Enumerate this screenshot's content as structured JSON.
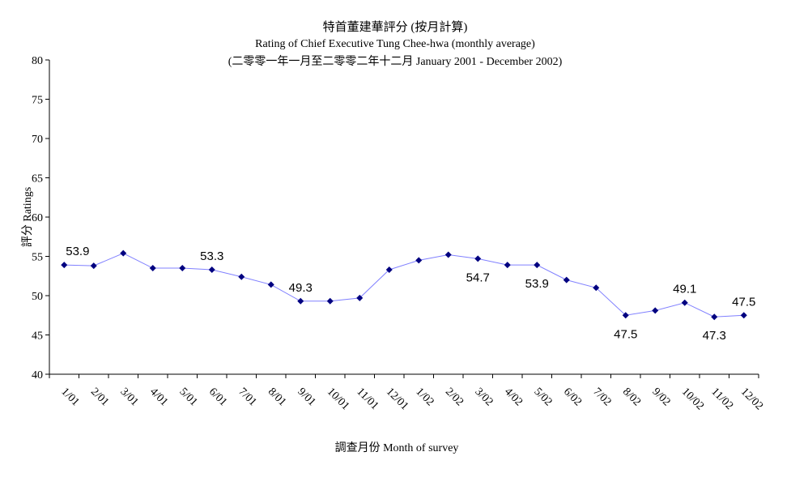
{
  "chart_data": {
    "type": "line",
    "title": "特首董建華評分 (按月計算)",
    "subtitle": "Rating of Chief Executive Tung Chee-hwa (monthly average)",
    "subtitle2": "(二零零一年一月至二零零二年十二月 January 2001 - December 2002)",
    "xlabel": "調查月份 Month of survey",
    "ylabel": "評分 Ratings",
    "ylim": [
      40,
      80
    ],
    "yticks": [
      40,
      45,
      50,
      55,
      60,
      65,
      70,
      75,
      80
    ],
    "categories": [
      "1/01",
      "2/01",
      "3/01",
      "4/01",
      "5/01",
      "6/01",
      "7/01",
      "8/01",
      "9/01",
      "10/01",
      "11/01",
      "12/01",
      "1/02",
      "2/02",
      "3/02",
      "4/02",
      "5/02",
      "6/02",
      "7/02",
      "8/02",
      "9/02",
      "10/02",
      "11/02",
      "12/02"
    ],
    "series": [
      {
        "name": "Ratings",
        "color": "#8080ff",
        "marker_color": "#000080",
        "values": [
          53.9,
          53.8,
          55.4,
          53.5,
          53.5,
          53.3,
          52.4,
          51.4,
          49.3,
          49.3,
          49.7,
          53.3,
          54.5,
          55.2,
          54.7,
          53.9,
          53.9,
          52.0,
          51.0,
          47.5,
          48.1,
          49.1,
          47.3,
          47.5
        ]
      }
    ],
    "data_labels": [
      {
        "index": 0,
        "text": "53.9",
        "pos": "above"
      },
      {
        "index": 5,
        "text": "53.3",
        "pos": "above"
      },
      {
        "index": 8,
        "text": "49.3",
        "pos": "above"
      },
      {
        "index": 14,
        "text": "54.7",
        "pos": "below"
      },
      {
        "index": 16,
        "text": "53.9",
        "pos": "below"
      },
      {
        "index": 19,
        "text": "47.5",
        "pos": "below"
      },
      {
        "index": 21,
        "text": "49.1",
        "pos": "above"
      },
      {
        "index": 22,
        "text": "47.3",
        "pos": "below"
      },
      {
        "index": 23,
        "text": "47.5",
        "pos": "above"
      }
    ],
    "grid": false,
    "legend": "none"
  }
}
